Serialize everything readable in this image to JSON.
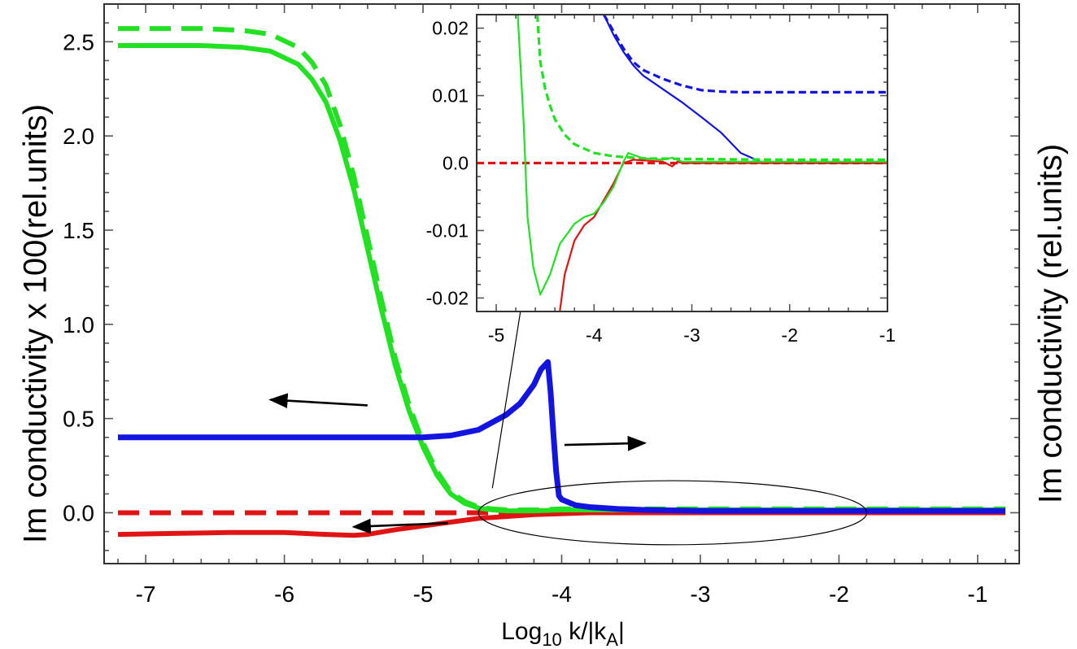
{
  "chart_data": {
    "type": "line",
    "xlabel": {
      "base": "Log",
      "subscript": "10",
      "main": " k/|k",
      "subscript2": "A",
      "tail": "|"
    },
    "ylabel_left": "Im conductivity x 100(rel.units)",
    "ylabel_right": "Im conductivity  (rel.units)",
    "xlim": [
      -7.3,
      -0.7
    ],
    "ylim": [
      -0.27,
      2.7
    ],
    "xticks": [
      -7,
      -6,
      -5,
      -4,
      -3,
      -2,
      -1
    ],
    "xtick_labels": [
      "-7",
      "-6",
      "-5",
      "-4",
      "-3",
      "-2",
      "-1"
    ],
    "yticks": [
      0.0,
      0.5,
      1.0,
      1.5,
      2.0,
      2.5
    ],
    "ytick_labels": [
      "0.0",
      "0.5",
      "1.0",
      "1.5",
      "2.0",
      "2.5"
    ],
    "series": [
      {
        "name": "green-solid",
        "color": "#22e022",
        "style": "solid",
        "x": [
          -7.2,
          -7.0,
          -6.6,
          -6.3,
          -6.1,
          -5.9,
          -5.8,
          -5.7,
          -5.6,
          -5.5,
          -5.4,
          -5.3,
          -5.2,
          -5.1,
          -5.0,
          -4.9,
          -4.8,
          -4.7,
          -4.6,
          -4.5,
          -4.4,
          -4.2,
          -4.0,
          -3.6,
          -3.0,
          -2.0,
          -0.8
        ],
        "y": [
          2.48,
          2.48,
          2.48,
          2.47,
          2.45,
          2.38,
          2.3,
          2.18,
          1.98,
          1.72,
          1.4,
          1.08,
          0.78,
          0.54,
          0.35,
          0.2,
          0.1,
          0.05,
          0.025,
          0.015,
          0.01,
          0.01,
          0.015,
          0.015,
          0.015,
          0.015,
          0.015
        ]
      },
      {
        "name": "green-dashed",
        "color": "#22e022",
        "style": "dashed",
        "x": [
          -7.2,
          -7.0,
          -6.6,
          -6.3,
          -6.1,
          -5.9,
          -5.8,
          -5.7,
          -5.6,
          -5.5,
          -5.4,
          -5.3,
          -5.2,
          -5.1,
          -5.0,
          -4.9,
          -4.8,
          -4.7,
          -4.6,
          -4.5,
          -4.4,
          -4.2,
          -4.0,
          -3.6,
          -3.0,
          -2.0,
          -0.8
        ],
        "y": [
          2.57,
          2.57,
          2.57,
          2.56,
          2.54,
          2.47,
          2.39,
          2.27,
          2.06,
          1.79,
          1.46,
          1.13,
          0.82,
          0.57,
          0.37,
          0.22,
          0.11,
          0.06,
          0.03,
          0.02,
          0.015,
          0.015,
          0.02,
          0.02,
          0.02,
          0.02,
          0.02
        ]
      },
      {
        "name": "blue-solid",
        "color": "#1414e0",
        "style": "solid",
        "x": [
          -7.2,
          -6.5,
          -6.0,
          -5.5,
          -5.0,
          -4.8,
          -4.6,
          -4.4,
          -4.3,
          -4.2,
          -4.15,
          -4.1,
          -4.08,
          -4.06,
          -4.04,
          -4.02,
          -4.0,
          -3.9,
          -3.8,
          -3.6,
          -3.4,
          -3.0,
          -2.5,
          -2.0,
          -0.8
        ],
        "y": [
          0.4,
          0.4,
          0.4,
          0.4,
          0.4,
          0.41,
          0.44,
          0.52,
          0.58,
          0.68,
          0.76,
          0.8,
          0.64,
          0.42,
          0.22,
          0.09,
          0.07,
          0.04,
          0.03,
          0.02,
          0.015,
          0.01,
          0.01,
          0.01,
          0.01
        ]
      },
      {
        "name": "red-solid",
        "color": "#e01414",
        "style": "solid",
        "x": [
          -7.2,
          -6.8,
          -6.4,
          -6.0,
          -5.7,
          -5.5,
          -5.4,
          -5.2,
          -5.0,
          -4.8,
          -4.6,
          -4.4,
          -4.2,
          -4.0,
          -3.8,
          -3.5,
          -3.0,
          -2.0,
          -0.8
        ],
        "y": [
          -0.115,
          -0.11,
          -0.105,
          -0.105,
          -0.115,
          -0.12,
          -0.115,
          -0.09,
          -0.07,
          -0.05,
          -0.03,
          -0.02,
          -0.01,
          -0.005,
          0.0,
          0.0,
          0.0,
          0.0,
          0.0
        ]
      },
      {
        "name": "red-dashed",
        "color": "#e01414",
        "style": "dashed",
        "x": [
          -7.2,
          -0.8
        ],
        "y": [
          0.0,
          0.0
        ]
      }
    ],
    "annotations": {
      "arrows": [
        {
          "from": [
            -5.4,
            0.57
          ],
          "to": [
            -6.1,
            0.6
          ],
          "points_to": "left axis"
        },
        {
          "from": [
            -3.98,
            0.36
          ],
          "to": [
            -3.4,
            0.37
          ],
          "points_to": "right axis"
        },
        {
          "from": [
            -4.82,
            -0.055
          ],
          "to": [
            -5.5,
            -0.075
          ],
          "points_to": "left axis"
        },
        {
          "from": [
            -4.5,
            0.13
          ],
          "to": [
            -4.12,
            1.89
          ],
          "points_to": "inset"
        }
      ],
      "ellipse": {
        "cx": -3.2,
        "cy": 0.0,
        "rx": 1.4,
        "ry": 0.17
      }
    },
    "inset": {
      "type": "line",
      "xlim": [
        -5.2,
        -1.0
      ],
      "ylim": [
        -0.022,
        0.022
      ],
      "xticks": [
        -5,
        -4,
        -3,
        -2,
        -1
      ],
      "xtick_labels": [
        "-5",
        "-4",
        "-3",
        "-2",
        "-1"
      ],
      "yticks": [
        -0.02,
        -0.01,
        0.0,
        0.01,
        0.02
      ],
      "ytick_labels": [
        "-0.02",
        "-0.01",
        "0.0",
        "0.01",
        "0.02"
      ],
      "series": [
        {
          "name": "inset-green-solid",
          "color": "#22e022",
          "style": "solid",
          "x": [
            -4.78,
            -4.72,
            -4.68,
            -4.62,
            -4.55,
            -4.45,
            -4.35,
            -4.2,
            -4.1,
            -4.0,
            -3.9,
            -3.8,
            -3.7,
            -3.65,
            -3.5,
            -3.3,
            -3.2,
            -3.1,
            -3.0,
            -2.5,
            -1.0
          ],
          "y": [
            0.022,
            0.006,
            -0.008,
            -0.0155,
            -0.0195,
            -0.0165,
            -0.012,
            -0.009,
            -0.008,
            -0.0075,
            -0.0058,
            -0.0035,
            0.0002,
            0.0015,
            0.0007,
            0.0005,
            0.0008,
            0.0002,
            0.0002,
            0.0002,
            0.0002
          ]
        },
        {
          "name": "inset-green-dashed",
          "color": "#22e022",
          "style": "dashed",
          "x": [
            -4.58,
            -4.55,
            -4.5,
            -4.45,
            -4.4,
            -4.3,
            -4.2,
            -4.0,
            -3.8,
            -3.5,
            -3.0,
            -2.0,
            -1.0
          ],
          "y": [
            0.022,
            0.015,
            0.011,
            0.0085,
            0.0065,
            0.0042,
            0.0028,
            0.0015,
            0.001,
            0.0007,
            0.0006,
            0.0005,
            0.0005
          ]
        },
        {
          "name": "inset-red-solid",
          "color": "#e01414",
          "style": "solid",
          "x": [
            -4.35,
            -4.3,
            -4.2,
            -4.1,
            -4.0,
            -3.9,
            -3.8,
            -3.7,
            -3.6,
            -3.3,
            -3.2,
            -3.15,
            -3.1,
            -3.0,
            -2.0,
            -1.0
          ],
          "y": [
            -0.022,
            -0.0165,
            -0.0115,
            -0.0092,
            -0.008,
            -0.0055,
            -0.003,
            0.0,
            0.0005,
            0.0002,
            -0.0005,
            0.0002,
            0.0,
            0.0,
            0.0,
            0.0
          ]
        },
        {
          "name": "inset-red-dashed",
          "color": "#e01414",
          "style": "dashed",
          "x": [
            -5.2,
            -1.0
          ],
          "y": [
            0.0,
            0.0
          ]
        },
        {
          "name": "inset-blue-solid",
          "color": "#1414e0",
          "style": "solid",
          "x": [
            -3.9,
            -3.8,
            -3.7,
            -3.6,
            -3.5,
            -3.3,
            -3.1,
            -2.9,
            -2.7,
            -2.5,
            -2.3,
            -2.0,
            -1.0
          ],
          "y": [
            0.022,
            0.019,
            0.0165,
            0.0145,
            0.013,
            0.011,
            0.009,
            0.0068,
            0.0045,
            0.0015,
            0.0002,
            0.0,
            0.0
          ]
        },
        {
          "name": "inset-blue-dashed",
          "color": "#1414e0",
          "style": "dashed",
          "x": [
            -3.9,
            -3.8,
            -3.7,
            -3.6,
            -3.5,
            -3.3,
            -3.1,
            -2.9,
            -2.7,
            -2.5,
            -2.0,
            -1.0
          ],
          "y": [
            0.022,
            0.0195,
            0.017,
            0.015,
            0.0138,
            0.0125,
            0.0115,
            0.0108,
            0.0106,
            0.0105,
            0.0105,
            0.0105
          ]
        }
      ]
    }
  }
}
